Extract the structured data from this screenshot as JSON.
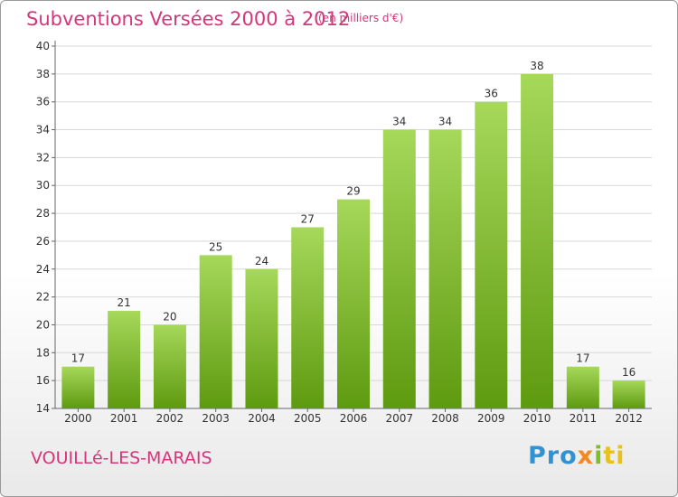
{
  "header": {
    "title": "Subventions Versées 2000 à 2012",
    "subtitle": "(en milliers d'€)"
  },
  "footer": {
    "commune": "VOUILLé-LES-MARAIS",
    "brand": [
      "Pro",
      "x",
      "i",
      "ti"
    ]
  },
  "colors": {
    "accent": "#d6357c",
    "bar_top": "#a6d85a",
    "bar_bottom": "#5e9a10",
    "grid": "#d8d8d8"
  },
  "chart_data": {
    "type": "bar",
    "title": "Subventions Versées 2000 à 2012",
    "subtitle": "(en milliers d'€)",
    "xlabel": "",
    "ylabel": "",
    "categories": [
      "2000",
      "2001",
      "2002",
      "2003",
      "2004",
      "2005",
      "2006",
      "2007",
      "2008",
      "2009",
      "2010",
      "2011",
      "2012"
    ],
    "values": [
      17,
      21,
      20,
      25,
      24,
      27,
      29,
      34,
      34,
      36,
      38,
      17,
      16
    ],
    "ylim": [
      14,
      40
    ],
    "yticks": [
      14,
      16,
      18,
      20,
      22,
      24,
      26,
      28,
      30,
      32,
      34,
      36,
      38,
      40
    ],
    "grid": true,
    "data_labels": true
  }
}
